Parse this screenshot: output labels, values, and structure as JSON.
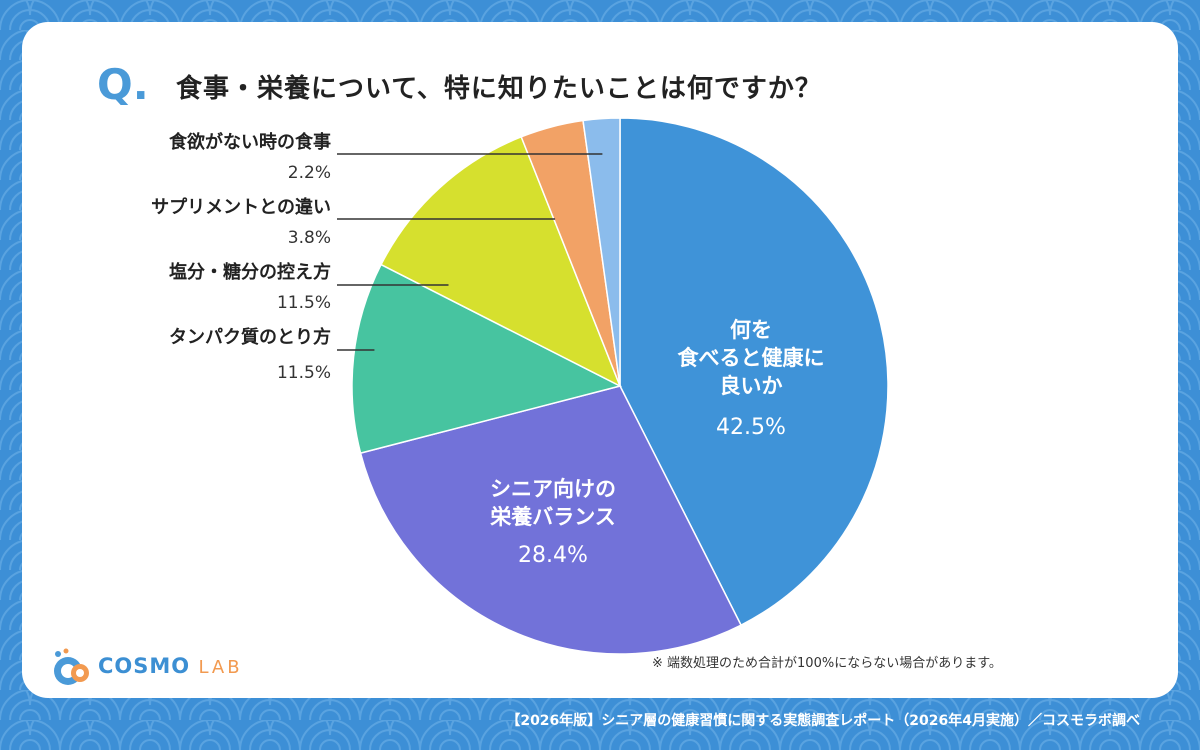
{
  "title": {
    "q_mark": "Q",
    "q_dot": ".",
    "question": "食事・栄養について、特に知りたいことは何ですか？"
  },
  "chart_data": {
    "type": "pie",
    "start_angle_deg": 0,
    "direction": "clockwise",
    "slices": [
      {
        "lines": [
          "何を",
          "食べると健康に",
          "良いか"
        ],
        "value": 42.5,
        "value_label": "42.5%",
        "color": "#3f93d8",
        "label_position": "inside"
      },
      {
        "lines": [
          "シニア向けの",
          "栄養バランス"
        ],
        "value": 28.4,
        "value_label": "28.4%",
        "color": "#7272d9",
        "label_position": "inside"
      },
      {
        "lines": [
          "タンパク質のとり方"
        ],
        "value": 11.5,
        "value_label": "11.5%",
        "color": "#47c4a0",
        "label_position": "outside"
      },
      {
        "lines": [
          "塩分・糖分の控え方"
        ],
        "value": 11.5,
        "value_label": "11.5%",
        "color": "#d6e02e",
        "label_position": "outside"
      },
      {
        "lines": [
          "サプリメントとの違い"
        ],
        "value": 3.8,
        "value_label": "3.8%",
        "color": "#f2a266",
        "label_position": "outside"
      },
      {
        "lines": [
          "食欲がない時の食事"
        ],
        "value": 2.2,
        "value_label": "2.2%",
        "color": "#8bbcec",
        "label_position": "outside"
      }
    ]
  },
  "note": "※ 端数処理のため合計が100%にならない場合があります。",
  "footer": "【2026年版】シニア層の健康習慣に関する実態調査レポート（2026年4月実施）／コスモラボ調べ",
  "logo": {
    "brand": "COSMO",
    "suffix": "LAB"
  },
  "colors": {
    "background": "#3d8fd6",
    "card": "#ffffff",
    "accent": "#4a9ad8",
    "logo_orange": "#f29a50"
  }
}
